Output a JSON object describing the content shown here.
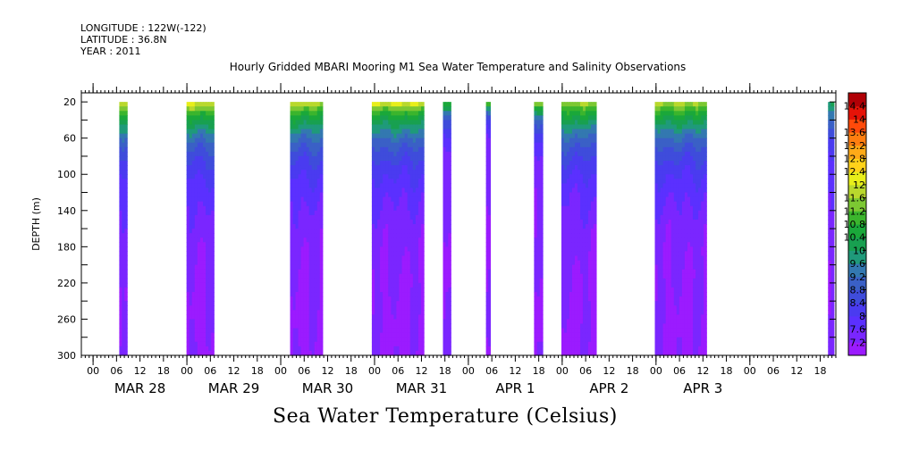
{
  "header": {
    "longitude": "LONGITUDE : 122W(-122)",
    "latitude": "LATITUDE : 36.8N",
    "year": "YEAR : 2011"
  },
  "chart_data": {
    "type": "heatmap",
    "title": "Hourly Gridded MBARI Mooring M1 Sea Water Temperature and Salinity Observations",
    "bottom_title": "Sea Water Temperature (Celsius)",
    "ylabel": "DEPTH (m)",
    "ylim": [
      300,
      10
    ],
    "y_ticks": [
      20,
      60,
      100,
      140,
      180,
      220,
      260,
      300
    ],
    "xlim": [
      -3,
      190
    ],
    "x_unit": "hours since MAR 28 00:00, 2011",
    "x_ticks": [
      {
        "t": 0,
        "label": "00"
      },
      {
        "t": 6,
        "label": "06"
      },
      {
        "t": 12,
        "label": "12"
      },
      {
        "t": 18,
        "label": "18"
      },
      {
        "t": 24,
        "label": "00"
      },
      {
        "t": 30,
        "label": "06"
      },
      {
        "t": 36,
        "label": "12"
      },
      {
        "t": 42,
        "label": "18"
      },
      {
        "t": 48,
        "label": "00"
      },
      {
        "t": 54,
        "label": "06"
      },
      {
        "t": 60,
        "label": "12"
      },
      {
        "t": 66,
        "label": "18"
      },
      {
        "t": 72,
        "label": "00"
      },
      {
        "t": 78,
        "label": "06"
      },
      {
        "t": 84,
        "label": "12"
      },
      {
        "t": 90,
        "label": "18"
      },
      {
        "t": 96,
        "label": "00"
      },
      {
        "t": 102,
        "label": "06"
      },
      {
        "t": 108,
        "label": "12"
      },
      {
        "t": 114,
        "label": "18"
      },
      {
        "t": 120,
        "label": "00"
      },
      {
        "t": 126,
        "label": "06"
      },
      {
        "t": 132,
        "label": "12"
      },
      {
        "t": 138,
        "label": "18"
      },
      {
        "t": 144,
        "label": "00"
      },
      {
        "t": 150,
        "label": "06"
      },
      {
        "t": 156,
        "label": "12"
      },
      {
        "t": 162,
        "label": "18"
      },
      {
        "t": 168,
        "label": "00"
      },
      {
        "t": 174,
        "label": "06"
      },
      {
        "t": 180,
        "label": "12"
      },
      {
        "t": 186,
        "label": "18"
      }
    ],
    "day_labels": [
      {
        "t": 12,
        "label": "MAR 28"
      },
      {
        "t": 36,
        "label": "MAR 29"
      },
      {
        "t": 60,
        "label": "MAR 30"
      },
      {
        "t": 84,
        "label": "MAR 31"
      },
      {
        "t": 108,
        "label": "APR  1"
      },
      {
        "t": 132,
        "label": "APR  2"
      },
      {
        "t": 156,
        "label": "APR  3"
      }
    ],
    "segments": [
      {
        "t0": 6.7,
        "t1": 8.7,
        "surface": 11.8,
        "depth_decay": 0.02,
        "top_warm": 0
      },
      {
        "t0": 23.9,
        "t1": 30.9,
        "surface": 12.0,
        "depth_decay": 0.02,
        "top_warm": 0.2
      },
      {
        "t0": 50.4,
        "t1": 58.7,
        "surface": 11.9,
        "depth_decay": 0.02,
        "top_warm": 0.1
      },
      {
        "t0": 71.3,
        "t1": 84.6,
        "surface": 11.9,
        "depth_decay": 0.02,
        "top_warm": 0.4
      },
      {
        "t0": 89.5,
        "t1": 91.5,
        "surface": 11.0,
        "depth_decay": 0.04,
        "top_warm": 0
      },
      {
        "t0": 100.5,
        "t1": 101.6,
        "surface": 11.5,
        "depth_decay": 0.06,
        "top_warm": 0
      },
      {
        "t0": 112.8,
        "t1": 115.0,
        "surface": 11.6,
        "depth_decay": 0.04,
        "top_warm": 0
      },
      {
        "t0": 119.8,
        "t1": 128.7,
        "surface": 11.7,
        "depth_decay": 0.02,
        "top_warm": 0
      },
      {
        "t0": 143.7,
        "t1": 156.9,
        "surface": 11.8,
        "depth_decay": 0.02,
        "top_warm": 0
      },
      {
        "t0": 188.0,
        "t1": 189.5,
        "surface": 10.0,
        "depth_decay": 0.02,
        "top_warm": 0
      }
    ],
    "colorbar": {
      "levels": [
        7.2,
        7.6,
        8,
        8.4,
        8.8,
        9.2,
        9.6,
        10,
        10.4,
        10.8,
        11.2,
        11.6,
        12,
        12.4,
        12.8,
        13.2,
        13.6,
        14,
        14.4
      ],
      "colors": [
        "#9b1bff",
        "#7a26ff",
        "#5b30ff",
        "#4a3bf0",
        "#3f4cdb",
        "#3a60c6",
        "#3378b0",
        "#1f9a7a",
        "#18a050",
        "#1aa83a",
        "#3bb52d",
        "#7cc832",
        "#b9d82d",
        "#e8ee1a",
        "#ffd21a",
        "#ffaa18",
        "#ff7e10",
        "#ff4a0a",
        "#e51308",
        "#b00006"
      ]
    }
  }
}
